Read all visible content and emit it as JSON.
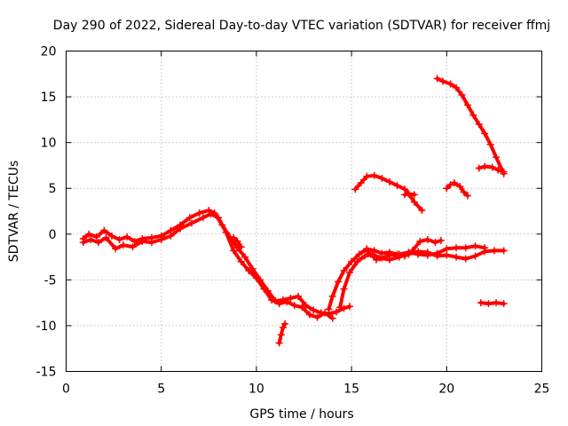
{
  "chart_data": {
    "type": "line",
    "title": "Day 290 of 2022, Sidereal Day-to-day VTEC variation (SDTVAR) for receiver ffmj",
    "xlabel": "GPS time / hours",
    "ylabel": "SDTVAR / TECUs",
    "xlim": [
      0,
      25
    ],
    "ylim": [
      -15,
      20
    ],
    "xticks": [
      0,
      5,
      10,
      15,
      20,
      25
    ],
    "yticks": [
      -15,
      -10,
      -5,
      0,
      5,
      10,
      15,
      20
    ],
    "grid": true,
    "marker": "plus",
    "color": "#ff0000",
    "series": [
      {
        "values": [
          [
            0.9,
            -0.5
          ],
          [
            1.2,
            0.0
          ],
          [
            1.6,
            -0.3
          ],
          [
            2.0,
            0.4
          ],
          [
            2.4,
            -0.2
          ],
          [
            2.8,
            -0.6
          ],
          [
            3.2,
            -0.3
          ],
          [
            3.6,
            -0.8
          ],
          [
            4.0,
            -0.5
          ],
          [
            4.5,
            -0.4
          ],
          [
            5.0,
            -0.2
          ],
          [
            5.5,
            0.4
          ],
          [
            6.0,
            1.0
          ],
          [
            6.5,
            1.8
          ],
          [
            7.0,
            2.3
          ],
          [
            7.5,
            2.6
          ],
          [
            7.8,
            2.3
          ],
          [
            8.2,
            1.0
          ],
          [
            8.6,
            -0.3
          ],
          [
            9.0,
            -1.5
          ],
          [
            9.4,
            -2.5
          ],
          [
            9.8,
            -3.8
          ],
          [
            10.2,
            -5.0
          ],
          [
            10.6,
            -6.2
          ],
          [
            11.0,
            -7.3
          ],
          [
            11.4,
            -7.2
          ],
          [
            11.8,
            -7.0
          ],
          [
            12.2,
            -6.8
          ],
          [
            12.6,
            -7.8
          ],
          [
            13.0,
            -8.3
          ],
          [
            13.4,
            -8.6
          ],
          [
            13.8,
            -8.7
          ],
          [
            14.2,
            -8.5
          ],
          [
            14.6,
            -8.1
          ],
          [
            14.9,
            -7.9
          ]
        ]
      },
      {
        "values": [
          [
            0.9,
            -0.9
          ],
          [
            1.3,
            -0.6
          ],
          [
            1.7,
            -0.9
          ],
          [
            2.1,
            -0.4
          ],
          [
            2.6,
            -1.6
          ],
          [
            3.0,
            -1.2
          ],
          [
            3.5,
            -1.4
          ],
          [
            4.0,
            -0.8
          ],
          [
            4.5,
            -0.9
          ],
          [
            5.0,
            -0.6
          ],
          [
            5.5,
            -0.2
          ],
          [
            6.0,
            0.6
          ],
          [
            6.6,
            1.2
          ],
          [
            7.2,
            1.8
          ],
          [
            7.6,
            2.2
          ],
          [
            8.0,
            1.8
          ],
          [
            8.4,
            0.2
          ],
          [
            8.8,
            -1.8
          ],
          [
            9.2,
            -3.0
          ],
          [
            9.6,
            -4.0
          ],
          [
            10.0,
            -4.8
          ],
          [
            10.4,
            -6.0
          ],
          [
            10.8,
            -7.2
          ],
          [
            11.2,
            -7.6
          ],
          [
            11.6,
            -7.4
          ],
          [
            12.0,
            -7.8
          ],
          [
            12.4,
            -8.0
          ],
          [
            12.8,
            -8.8
          ],
          [
            13.2,
            -9.1
          ],
          [
            13.6,
            -8.6
          ],
          [
            14.0,
            -9.2
          ]
        ]
      },
      {
        "values": [
          [
            8.8,
            -0.4
          ],
          [
            9.0,
            -0.8
          ],
          [
            9.2,
            -1.4
          ]
        ]
      },
      {
        "values": [
          [
            11.2,
            -11.9
          ],
          [
            11.3,
            -11.0
          ],
          [
            11.4,
            -10.2
          ],
          [
            11.5,
            -9.8
          ]
        ]
      },
      {
        "values": [
          [
            13.8,
            -8.2
          ],
          [
            14.0,
            -6.8
          ],
          [
            14.3,
            -5.2
          ],
          [
            14.6,
            -4.0
          ],
          [
            15.0,
            -3.0
          ],
          [
            15.4,
            -2.2
          ],
          [
            15.8,
            -1.6
          ],
          [
            16.2,
            -1.8
          ],
          [
            16.6,
            -2.1
          ],
          [
            17.0,
            -2.0
          ],
          [
            17.4,
            -2.2
          ],
          [
            17.8,
            -2.4
          ],
          [
            18.2,
            -1.8
          ],
          [
            18.6,
            -0.8
          ],
          [
            19.0,
            -0.6
          ],
          [
            19.4,
            -0.9
          ],
          [
            19.7,
            -0.7
          ]
        ]
      },
      {
        "values": [
          [
            14.4,
            -8.0
          ],
          [
            14.6,
            -6.0
          ],
          [
            14.9,
            -4.2
          ],
          [
            15.3,
            -3.0
          ],
          [
            15.7,
            -2.4
          ],
          [
            16.1,
            -2.2
          ],
          [
            16.5,
            -2.6
          ],
          [
            17.0,
            -2.8
          ],
          [
            17.5,
            -2.5
          ],
          [
            18.0,
            -2.2
          ],
          [
            18.5,
            -1.9
          ],
          [
            19.0,
            -2.0
          ],
          [
            19.5,
            -2.4
          ],
          [
            20.0,
            -2.3
          ],
          [
            20.5,
            -2.5
          ],
          [
            21.0,
            -2.7
          ],
          [
            21.5,
            -2.4
          ],
          [
            22.0,
            -1.9
          ],
          [
            22.5,
            -1.8
          ],
          [
            23.0,
            -1.8
          ]
        ]
      },
      {
        "values": [
          [
            15.8,
            -1.8
          ],
          [
            16.0,
            -2.2
          ],
          [
            16.3,
            -2.8
          ],
          [
            16.6,
            -2.6
          ],
          [
            17.0,
            -2.3
          ],
          [
            17.5,
            -2.2
          ],
          [
            18.0,
            -2.0
          ],
          [
            18.5,
            -2.2
          ],
          [
            19.0,
            -2.3
          ],
          [
            19.5,
            -2.1
          ],
          [
            20.0,
            -1.6
          ],
          [
            20.5,
            -1.5
          ],
          [
            21.0,
            -1.5
          ],
          [
            21.5,
            -1.3
          ],
          [
            22.0,
            -1.5
          ]
        ]
      },
      {
        "values": [
          [
            15.2,
            4.9
          ],
          [
            15.5,
            5.6
          ],
          [
            15.8,
            6.3
          ],
          [
            16.2,
            6.4
          ],
          [
            16.6,
            6.1
          ],
          [
            17.0,
            5.7
          ],
          [
            17.4,
            5.3
          ],
          [
            17.8,
            4.9
          ],
          [
            18.0,
            4.4
          ],
          [
            18.3,
            3.5
          ],
          [
            18.7,
            2.6
          ]
        ]
      },
      {
        "values": [
          [
            17.8,
            4.3
          ],
          [
            18.0,
            4.4
          ],
          [
            18.3,
            4.3
          ]
        ]
      },
      {
        "values": [
          [
            19.5,
            17.0
          ],
          [
            19.8,
            16.7
          ],
          [
            20.2,
            16.4
          ],
          [
            20.5,
            16.0
          ],
          [
            20.8,
            15.2
          ],
          [
            21.1,
            14.1
          ],
          [
            21.4,
            13.0
          ],
          [
            21.7,
            12.0
          ],
          [
            22.0,
            11.0
          ],
          [
            22.3,
            9.8
          ],
          [
            22.6,
            8.4
          ],
          [
            23.0,
            6.6
          ]
        ]
      },
      {
        "values": [
          [
            20.0,
            5.0
          ],
          [
            20.2,
            5.4
          ],
          [
            20.4,
            5.6
          ],
          [
            20.7,
            5.2
          ],
          [
            20.9,
            4.6
          ],
          [
            21.1,
            4.2
          ]
        ]
      },
      {
        "values": [
          [
            21.7,
            7.2
          ],
          [
            22.0,
            7.4
          ],
          [
            22.4,
            7.3
          ],
          [
            22.7,
            7.0
          ],
          [
            23.0,
            6.8
          ]
        ]
      },
      {
        "values": [
          [
            21.8,
            -7.5
          ],
          [
            22.2,
            -7.6
          ],
          [
            22.6,
            -7.5
          ],
          [
            23.0,
            -7.6
          ]
        ]
      }
    ]
  }
}
